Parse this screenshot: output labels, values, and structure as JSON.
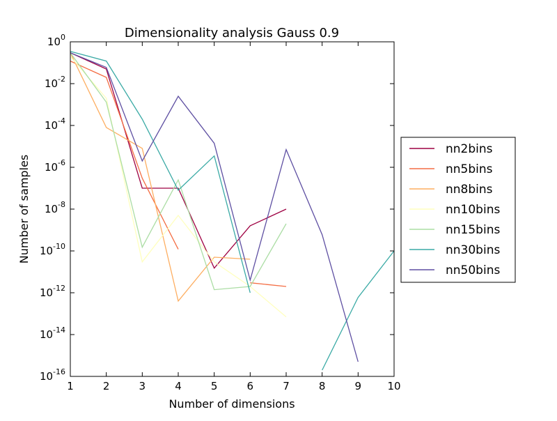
{
  "chart_data": {
    "type": "line",
    "title": "Dimensionality analysis Gauss 0.9",
    "xlabel": "Number of dimensions",
    "ylabel": "Number of samples",
    "x_ticks": [
      "1",
      "2",
      "3",
      "4",
      "5",
      "6",
      "7",
      "8",
      "9",
      "10"
    ],
    "y_ticks": [
      {
        "base": "10",
        "exp": "0"
      },
      {
        "base": "10",
        "exp": "-2"
      },
      {
        "base": "10",
        "exp": "-4"
      },
      {
        "base": "10",
        "exp": "-6"
      },
      {
        "base": "10",
        "exp": "-8"
      },
      {
        "base": "10",
        "exp": "-10"
      },
      {
        "base": "10",
        "exp": "-12"
      },
      {
        "base": "10",
        "exp": "-14"
      },
      {
        "base": "10",
        "exp": "-16"
      }
    ],
    "xlim": [
      1,
      10
    ],
    "ylim": [
      1e-16,
      1
    ],
    "yscale": "log",
    "grid": false,
    "legend_position": "outside-right",
    "series": [
      {
        "name": "nn2bins",
        "color": "#9e0142",
        "points": [
          [
            1,
            0.3
          ],
          [
            2,
            0.05
          ],
          [
            3,
            1e-07
          ],
          [
            4,
            1e-07
          ],
          [
            5,
            1.5e-11
          ],
          [
            6,
            1.6e-09
          ],
          [
            7,
            1e-08
          ]
        ]
      },
      {
        "name": "nn5bins",
        "color": "#f46d43",
        "points": [
          [
            1,
            0.12
          ],
          [
            2,
            0.02
          ],
          [
            3,
            3e-07
          ],
          [
            4,
            1.2e-10
          ],
          [
            null,
            null
          ],
          [
            6,
            3e-12
          ],
          [
            7,
            2e-12
          ]
        ]
      },
      {
        "name": "nn8bins",
        "color": "#fdae61",
        "points": [
          [
            1,
            0.3
          ],
          [
            2,
            8e-05
          ],
          [
            3,
            8e-06
          ],
          [
            4,
            4e-13
          ],
          [
            5,
            5e-11
          ],
          [
            6,
            4e-11
          ]
        ]
      },
      {
        "name": "nn10bins",
        "color": "#ffffbf",
        "points": [
          [
            1,
            0.2
          ],
          [
            2,
            0.002
          ],
          [
            3,
            3e-11
          ],
          [
            4,
            5e-09
          ],
          [
            5,
            3e-11
          ],
          [
            6,
            2e-12
          ],
          [
            7,
            7e-14
          ]
        ]
      },
      {
        "name": "nn15bins",
        "color": "#abdda4",
        "points": [
          [
            1,
            0.3
          ],
          [
            2,
            0.0013
          ],
          [
            3,
            1.5e-10
          ],
          [
            4,
            2.5e-07
          ],
          [
            5,
            1.4e-12
          ],
          [
            6,
            2e-12
          ],
          [
            7,
            2e-09
          ]
        ]
      },
      {
        "name": "nn30bins",
        "color": "#3aaaa5",
        "points": [
          [
            1,
            0.35
          ],
          [
            2,
            0.12
          ],
          [
            3,
            0.0002
          ],
          [
            4,
            8e-08
          ],
          [
            5,
            3.5e-06
          ],
          [
            6,
            1e-12
          ],
          [
            null,
            null
          ],
          [
            8,
            2e-16
          ],
          [
            9,
            6e-13
          ],
          [
            10,
            1e-10
          ]
        ]
      },
      {
        "name": "nn50bins",
        "color": "#5e4fa2",
        "points": [
          [
            1,
            0.3
          ],
          [
            2,
            0.06
          ],
          [
            3,
            2e-06
          ],
          [
            4,
            0.0025
          ],
          [
            5,
            1.4e-05
          ],
          [
            6,
            4e-12
          ],
          [
            7,
            7e-06
          ],
          [
            8,
            6e-10
          ],
          [
            9,
            5e-16
          ]
        ]
      }
    ]
  }
}
